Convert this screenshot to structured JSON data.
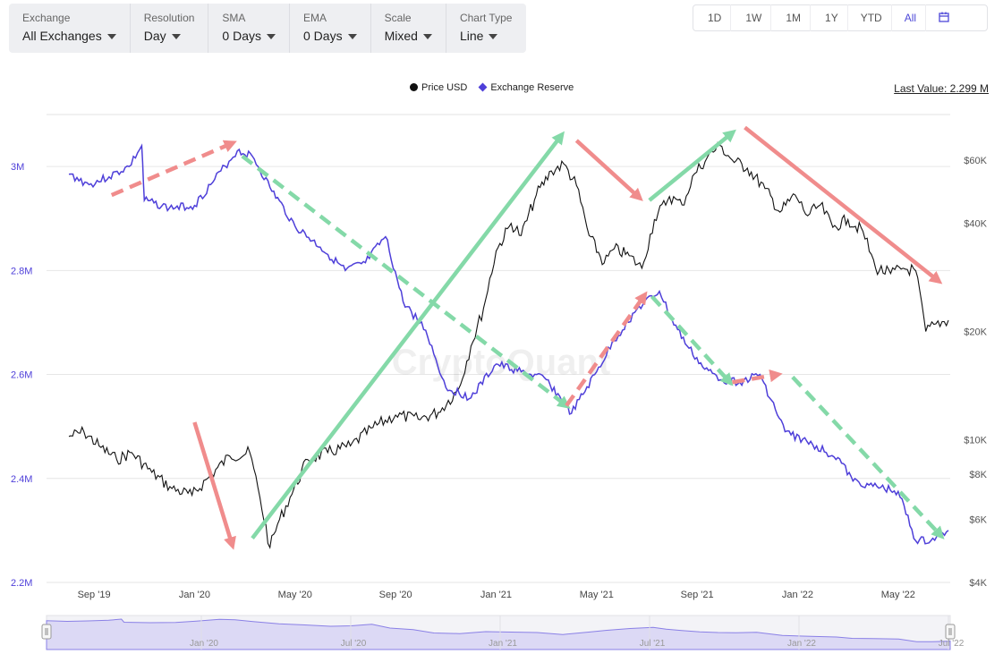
{
  "controls": [
    {
      "label": "Exchange",
      "value": "All Exchanges"
    },
    {
      "label": "Resolution",
      "value": "Day"
    },
    {
      "label": "SMA",
      "value": "0 Days"
    },
    {
      "label": "EMA",
      "value": "0 Days"
    },
    {
      "label": "Scale",
      "value": "Mixed"
    },
    {
      "label": "Chart Type",
      "value": "Line"
    }
  ],
  "ranges": [
    "1D",
    "1W",
    "1M",
    "1Y",
    "YTD",
    "All"
  ],
  "active_range": "All",
  "calendar_icon": "calendar-icon",
  "legend": {
    "price": "Price USD",
    "reserve": "Exchange Reserve"
  },
  "last_value": "Last Value: 2.299 M",
  "watermark": "CryptoQuant",
  "colors": {
    "price": "#111111",
    "reserve": "#4e3fd9",
    "arrow_red": "#f08c8c",
    "arrow_green": "#84d9a8",
    "grid": "#e6e6e6"
  },
  "chart_data": {
    "type": "line",
    "title": "",
    "x_ticks": [
      "Sep '19",
      "Jan '20",
      "May '20",
      "Sep '20",
      "Jan '21",
      "May '21",
      "Sep '21",
      "Jan '22",
      "May '22"
    ],
    "x_range": [
      0,
      35
    ],
    "left_axis": {
      "name": "Exchange Reserve",
      "ticks": [
        2200000,
        2400000,
        2600000,
        2800000,
        3000000
      ],
      "tick_labels": [
        "2.2M",
        "2.4M",
        "2.6M",
        "2.8M",
        "3M"
      ],
      "ylim": [
        2200000,
        3100000
      ]
    },
    "right_axis": {
      "name": "Price USD",
      "ticks": [
        4000,
        6000,
        8000,
        10000,
        20000,
        40000,
        60000
      ],
      "tick_labels": [
        "$4K",
        "$6K",
        "$8K",
        "$10K",
        "$20K",
        "$40K",
        "$60K"
      ],
      "scale": "log"
    },
    "navigator_ticks": [
      "Jan '20",
      "Jul '20",
      "Jan '21",
      "Jul '21",
      "Jan '22",
      "Jul '22"
    ],
    "series": [
      {
        "name": "Exchange Reserve",
        "axis": "left",
        "x": [
          0,
          0.8,
          1.6,
          2.4,
          2.9,
          3.0,
          4.0,
          5.0,
          5.8,
          6.7,
          7.3,
          8.0,
          9.0,
          10.0,
          11.0,
          11.8,
          12.6,
          13.3,
          14.2,
          15.0,
          16.0,
          17.0,
          18.0,
          19.0,
          20.0,
          21.0,
          21.7,
          22.6,
          23.5,
          24.0,
          24.6,
          25.3,
          26.0,
          26.7,
          27.5,
          28.5,
          29.6,
          30.6,
          31.2,
          32.0,
          33.0,
          33.7,
          34.3,
          35.0
        ],
        "values": [
          2985000,
          2965000,
          2980000,
          3000000,
          3040000,
          2935000,
          2920000,
          2925000,
          2975000,
          3030000,
          3020000,
          2960000,
          2885000,
          2845000,
          2800000,
          2815000,
          2865000,
          2740000,
          2685000,
          2575000,
          2555000,
          2620000,
          2605000,
          2590000,
          2525000,
          2605000,
          2665000,
          2725000,
          2760000,
          2705000,
          2655000,
          2610000,
          2590000,
          2585000,
          2600000,
          2490000,
          2465000,
          2440000,
          2395000,
          2385000,
          2375000,
          2280000,
          2280000,
          2300000
        ]
      },
      {
        "name": "Price USD",
        "axis": "right",
        "x": [
          0,
          0.6,
          1.2,
          1.9,
          2.5,
          3.3,
          4.1,
          4.9,
          5.6,
          6.4,
          7.2,
          7.6,
          8.0,
          8.3,
          8.8,
          9.5,
          10.3,
          11.2,
          12.1,
          13.0,
          13.9,
          14.7,
          15.5,
          16.0,
          16.5,
          17.0,
          17.6,
          18.0,
          18.6,
          19.2,
          19.7,
          20.2,
          20.7,
          21.3,
          21.7,
          22.3,
          22.8,
          23.3,
          23.9,
          24.4,
          24.9,
          25.4,
          25.9,
          26.4,
          27.0,
          27.7,
          28.3,
          28.9,
          29.4,
          29.9,
          30.4,
          31.0,
          31.6,
          32.1,
          32.7,
          33.2,
          33.7,
          34.1,
          34.5,
          35.0
        ],
        "values": [
          10200,
          10500,
          9600,
          8800,
          9200,
          8100,
          7300,
          7000,
          7900,
          9000,
          9200,
          6900,
          5000,
          5800,
          6900,
          8800,
          9200,
          9600,
          10800,
          11700,
          11400,
          11900,
          13800,
          18200,
          23200,
          33500,
          40000,
          37000,
          48000,
          56000,
          58500,
          51000,
          37000,
          31000,
          34000,
          32500,
          30000,
          41000,
          47500,
          45000,
          55000,
          61000,
          66000,
          60000,
          57000,
          50000,
          43000,
          48000,
          42000,
          45000,
          39000,
          41000,
          38000,
          30000,
          29000,
          30000,
          29500,
          20000,
          21000,
          21500
        ]
      }
    ],
    "annotations": [
      {
        "color": "red",
        "style": "dashed",
        "from": [
          1.7,
          2945000
        ],
        "to": [
          6.5,
          3045000
        ]
      },
      {
        "color": "red",
        "style": "solid",
        "from": [
          5.0,
          2508000
        ],
        "to": [
          6.5,
          2272000
        ]
      },
      {
        "color": "green",
        "style": "dashed",
        "from": [
          6.9,
          3020000
        ],
        "to": [
          19.8,
          2540000
        ]
      },
      {
        "color": "green",
        "style": "solid",
        "from": [
          7.3,
          2285000
        ],
        "to": [
          19.6,
          3060000
        ]
      },
      {
        "color": "red",
        "style": "dashed",
        "from": [
          19.8,
          2540000
        ],
        "to": [
          22.9,
          2752000
        ]
      },
      {
        "color": "red",
        "style": "solid",
        "from": [
          20.2,
          3050000
        ],
        "to": [
          22.7,
          2940000
        ]
      },
      {
        "color": "green",
        "style": "dashed",
        "from": [
          23.2,
          2750000
        ],
        "to": [
          26.3,
          2585000
        ]
      },
      {
        "color": "green",
        "style": "solid",
        "from": [
          23.1,
          2935000
        ],
        "to": [
          26.4,
          3065000
        ]
      },
      {
        "color": "red",
        "style": "dashed",
        "from": [
          26.4,
          2585000
        ],
        "to": [
          28.2,
          2600000
        ]
      },
      {
        "color": "green",
        "style": "dashed",
        "from": [
          28.8,
          2595000
        ],
        "to": [
          34.7,
          2290000
        ]
      },
      {
        "color": "red",
        "style": "solid",
        "from": [
          26.9,
          3075000
        ],
        "to": [
          34.6,
          2780000
        ]
      }
    ]
  }
}
